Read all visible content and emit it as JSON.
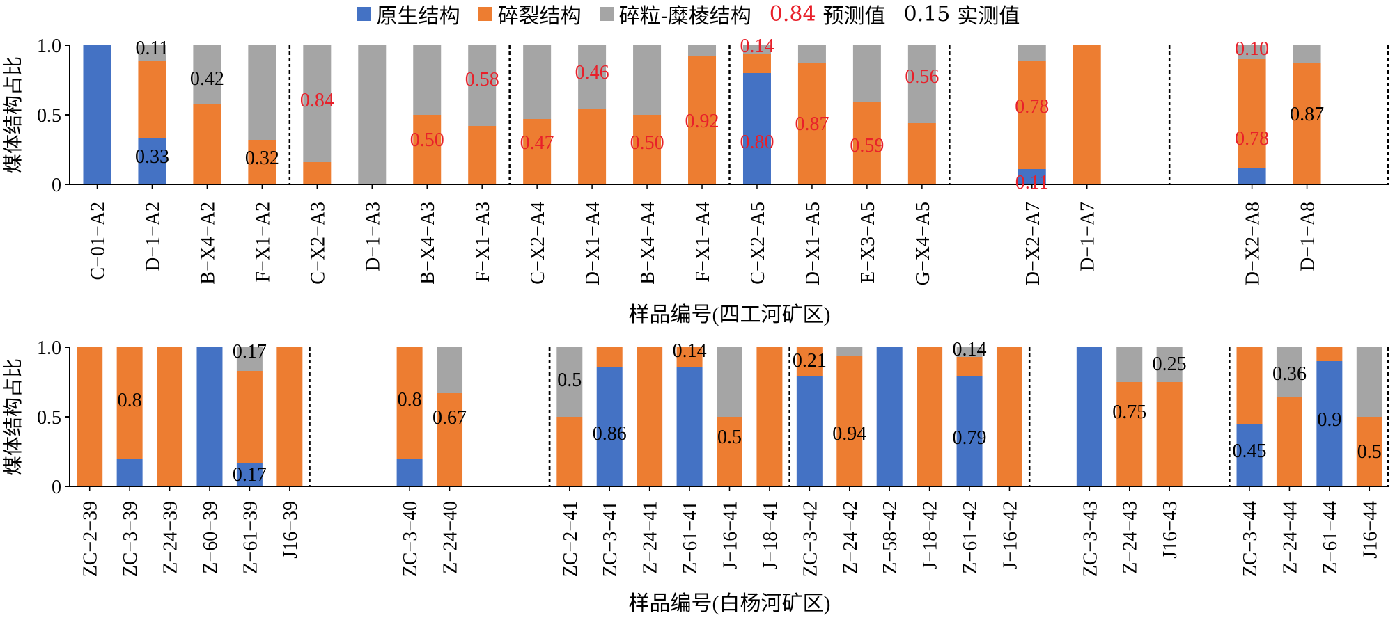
{
  "colors": {
    "primary": "#4472C4",
    "cataclastic": "#ED7D31",
    "granulated": "#A5A5A5",
    "predicted": "#E8202A",
    "measured": "#000000"
  },
  "legend": {
    "primary": "原生结构",
    "cataclastic": "碎裂结构",
    "granulated": "碎粒-糜棱结构",
    "predicted_value": "0.84",
    "predicted_label": "预测值",
    "measured_value": "0.15",
    "measured_label": "实测值"
  },
  "chart_data": [
    {
      "type": "bar",
      "stacked": true,
      "xlabel": "样品编号(四工河矿区)",
      "ylabel": "煤体结构占比",
      "ylim": [
        0,
        1.0
      ],
      "yticks": [
        "0",
        "0.5",
        "1.0"
      ],
      "categories": [
        "C-01-A2",
        "D-1-A2",
        "B-X4-A2",
        "F-X1-A2",
        "C-X2-A3",
        "D-1-A3",
        "B-X4-A3",
        "F-X1-A3",
        "C-X2-A4",
        "D-X1-A4",
        "B-X4-A4",
        "F-X1-A4",
        "C-X2-A5",
        "D-X1-A5",
        "E-X3-A5",
        "G-X4-A5",
        "",
        "D-X2-A7",
        "D-1-A7",
        "",
        "",
        "D-X2-A8",
        "D-1-A8",
        ""
      ],
      "tick_labels": [
        "C−01−A2",
        "D−1−A2",
        "B−X4−A2",
        "F−X1−A2",
        "C−X2−A3",
        "D−1−A3",
        "B−X4−A3",
        "F−X1−A3",
        "C−X2−A4",
        "D−X1−A4",
        "B−X4−A4",
        "F−X1−A4",
        "C−X2−A5",
        "D−X1−A5",
        "E−X3−A5",
        "G−X4−A5",
        "",
        "D−X2−A7",
        "D−1−A7",
        "",
        "",
        "D−X2−A8",
        "D−1−A8",
        ""
      ],
      "series": [
        {
          "name": "原生结构",
          "values": [
            1.0,
            0.33,
            0,
            0,
            0,
            0,
            0,
            0,
            0,
            0,
            0,
            0,
            0.8,
            0,
            0,
            0,
            null,
            0.11,
            0,
            null,
            null,
            0.12,
            0,
            null
          ]
        },
        {
          "name": "碎裂结构",
          "values": [
            0,
            0.56,
            0.58,
            0.32,
            0.16,
            0,
            0.5,
            0.42,
            0.47,
            0.54,
            0.5,
            0.92,
            0.14,
            0.87,
            0.59,
            0.44,
            null,
            0.78,
            1.0,
            null,
            null,
            0.78,
            0.87,
            null
          ]
        },
        {
          "name": "碎粒-糜棱结构",
          "values": [
            0,
            0.11,
            0.42,
            0.68,
            0.84,
            1.0,
            0.5,
            0.58,
            0.53,
            0.46,
            0.5,
            0.08,
            0.06,
            0.13,
            0.41,
            0.56,
            null,
            0.11,
            0,
            null,
            null,
            0.1,
            0.13,
            null
          ]
        }
      ],
      "group_separators_after": [
        3,
        7,
        11,
        15,
        19,
        23
      ],
      "annotations": [
        {
          "bar": 1,
          "text": "0.11",
          "y": 0.985,
          "kind": "measured"
        },
        {
          "bar": 1,
          "text": "0.33",
          "y": 0.205,
          "kind": "measured"
        },
        {
          "bar": 2,
          "text": "0.42",
          "y": 0.765,
          "kind": "measured"
        },
        {
          "bar": 3,
          "text": "0.32",
          "y": 0.195,
          "kind": "measured"
        },
        {
          "bar": 4,
          "text": "0.84",
          "y": 0.61,
          "kind": "predicted"
        },
        {
          "bar": 7,
          "text": "0.58",
          "y": 0.76,
          "kind": "predicted"
        },
        {
          "bar": 6,
          "text": "0.50",
          "y": 0.325,
          "kind": "predicted"
        },
        {
          "bar": 8,
          "text": "0.47",
          "y": 0.305,
          "kind": "predicted"
        },
        {
          "bar": 9,
          "text": "0.46",
          "y": 0.81,
          "kind": "predicted"
        },
        {
          "bar": 10,
          "text": "0.50",
          "y": 0.305,
          "kind": "predicted"
        },
        {
          "bar": 11,
          "text": "0.92",
          "y": 0.46,
          "kind": "predicted"
        },
        {
          "bar": 12,
          "text": "0.14",
          "y": 1.0,
          "kind": "predicted"
        },
        {
          "bar": 12,
          "text": "0.80",
          "y": 0.31,
          "kind": "predicted"
        },
        {
          "bar": 13,
          "text": "0.87",
          "y": 0.44,
          "kind": "predicted"
        },
        {
          "bar": 14,
          "text": "0.59",
          "y": 0.285,
          "kind": "predicted"
        },
        {
          "bar": 15,
          "text": "0.56",
          "y": 0.78,
          "kind": "predicted"
        },
        {
          "bar": 17,
          "text": "0.78",
          "y": 0.565,
          "kind": "predicted"
        },
        {
          "bar": 17,
          "text": "0.11",
          "y": 0.02,
          "kind": "predicted"
        },
        {
          "bar": 21,
          "text": "0.10",
          "y": 0.98,
          "kind": "predicted"
        },
        {
          "bar": 21,
          "text": "0.78",
          "y": 0.335,
          "kind": "predicted"
        },
        {
          "bar": 22,
          "text": "0.87",
          "y": 0.51,
          "kind": "measured"
        }
      ]
    },
    {
      "type": "bar",
      "stacked": true,
      "xlabel": "样品编号(白杨河矿区)",
      "ylabel": "煤体结构占比",
      "ylim": [
        0,
        1.0
      ],
      "yticks": [
        "0",
        "0.5",
        "1.0"
      ],
      "categories": [
        "ZC-2-39",
        "ZC-3-39",
        "Z-24-39",
        "Z-60-39",
        "Z-61-39",
        "J16-39",
        "",
        "",
        "ZC-3-40",
        "Z-24-40",
        "",
        "",
        "ZC-2-41",
        "ZC-3-41",
        "Z-24-41",
        "Z-61-41",
        "J-16-41",
        "J-18-41",
        "ZC-3-42",
        "Z-24-42",
        "Z-58-42",
        "J-18-42",
        "Z-61-42",
        "J-16-42",
        "",
        "ZC-3-43",
        "Z-24-43",
        "J16-43",
        "",
        "ZC-3-44",
        "Z-24-44",
        "Z-61-44",
        "J16-44"
      ],
      "tick_labels": [
        "ZC−2−39",
        "ZC−3−39",
        "Z−24−39",
        "Z−60−39",
        "Z−61−39",
        "J16−39",
        "",
        "",
        "ZC−3−40",
        "Z−24−40",
        "",
        "",
        "ZC−2−41",
        "ZC−3−41",
        "Z−24−41",
        "Z−61−41",
        "J−16−41",
        "J−18−41",
        "ZC−3−42",
        "Z−24−42",
        "Z−58−42",
        "J−18−42",
        "Z−61−42",
        "J−16−42",
        "",
        "ZC−3−43",
        "Z−24−43",
        "J16−43",
        "",
        "ZC−3−44",
        "Z−24−44",
        "Z−61−44",
        "J16−44"
      ],
      "series": [
        {
          "name": "原生结构",
          "values": [
            0,
            0.2,
            0,
            1.0,
            0.17,
            0,
            null,
            null,
            0.2,
            0,
            null,
            null,
            0,
            0.86,
            0,
            0.86,
            0,
            0,
            0.79,
            0,
            1.0,
            0,
            0.79,
            0,
            null,
            1.0,
            0,
            0,
            null,
            0.45,
            0,
            0.9,
            0
          ]
        },
        {
          "name": "碎裂结构",
          "values": [
            1.0,
            0.8,
            1.0,
            0,
            0.66,
            1.0,
            null,
            null,
            0.8,
            0.67,
            null,
            null,
            0.5,
            0.14,
            1.0,
            0.14,
            0.5,
            1.0,
            0.21,
            0.94,
            0,
            1.0,
            0.14,
            1.0,
            null,
            0,
            0.75,
            0.75,
            null,
            0.55,
            0.64,
            0.1,
            0.5
          ]
        },
        {
          "name": "碎粒-糜棱结构",
          "values": [
            0,
            0,
            0,
            0,
            0.17,
            0,
            null,
            null,
            0,
            0.33,
            null,
            null,
            0.5,
            0,
            0,
            0,
            0.5,
            0,
            0,
            0.06,
            0,
            0,
            0.07,
            0,
            null,
            0,
            0.25,
            0.25,
            null,
            0,
            0.36,
            0,
            0.5
          ]
        }
      ],
      "group_separators_after": [
        5,
        11,
        17,
        23,
        28,
        32
      ],
      "group_separators_before": [
        12,
        29
      ],
      "annotations": [
        {
          "bar": 1,
          "text": "0.8",
          "y": 0.625,
          "kind": "measured"
        },
        {
          "bar": 4,
          "text": "0.17",
          "y": 0.975,
          "kind": "measured"
        },
        {
          "bar": 4,
          "text": "0.17",
          "y": 0.09,
          "kind": "measured"
        },
        {
          "bar": 8,
          "text": "0.8",
          "y": 0.63,
          "kind": "measured"
        },
        {
          "bar": 9,
          "text": "0.67",
          "y": 0.5,
          "kind": "measured"
        },
        {
          "bar": 12,
          "text": "0.5",
          "y": 0.77,
          "kind": "measured"
        },
        {
          "bar": 13,
          "text": "0.86",
          "y": 0.385,
          "kind": "measured"
        },
        {
          "bar": 15,
          "text": "0.14",
          "y": 0.98,
          "kind": "measured"
        },
        {
          "bar": 16,
          "text": "0.5",
          "y": 0.36,
          "kind": "measured"
        },
        {
          "bar": 18,
          "text": "0.21",
          "y": 0.91,
          "kind": "measured"
        },
        {
          "bar": 19,
          "text": "0.94",
          "y": 0.385,
          "kind": "measured"
        },
        {
          "bar": 22,
          "text": "0.14",
          "y": 0.99,
          "kind": "measured"
        },
        {
          "bar": 22,
          "text": "0.79",
          "y": 0.355,
          "kind": "measured"
        },
        {
          "bar": 27,
          "text": "0.25",
          "y": 0.885,
          "kind": "measured"
        },
        {
          "bar": 26,
          "text": "0.75",
          "y": 0.54,
          "kind": "measured"
        },
        {
          "bar": 30,
          "text": "0.36",
          "y": 0.815,
          "kind": "measured"
        },
        {
          "bar": 29,
          "text": "0.45",
          "y": 0.26,
          "kind": "measured"
        },
        {
          "bar": 31,
          "text": "0.9",
          "y": 0.485,
          "kind": "measured"
        },
        {
          "bar": 32,
          "text": "0.5",
          "y": 0.255,
          "kind": "measured"
        }
      ]
    }
  ]
}
